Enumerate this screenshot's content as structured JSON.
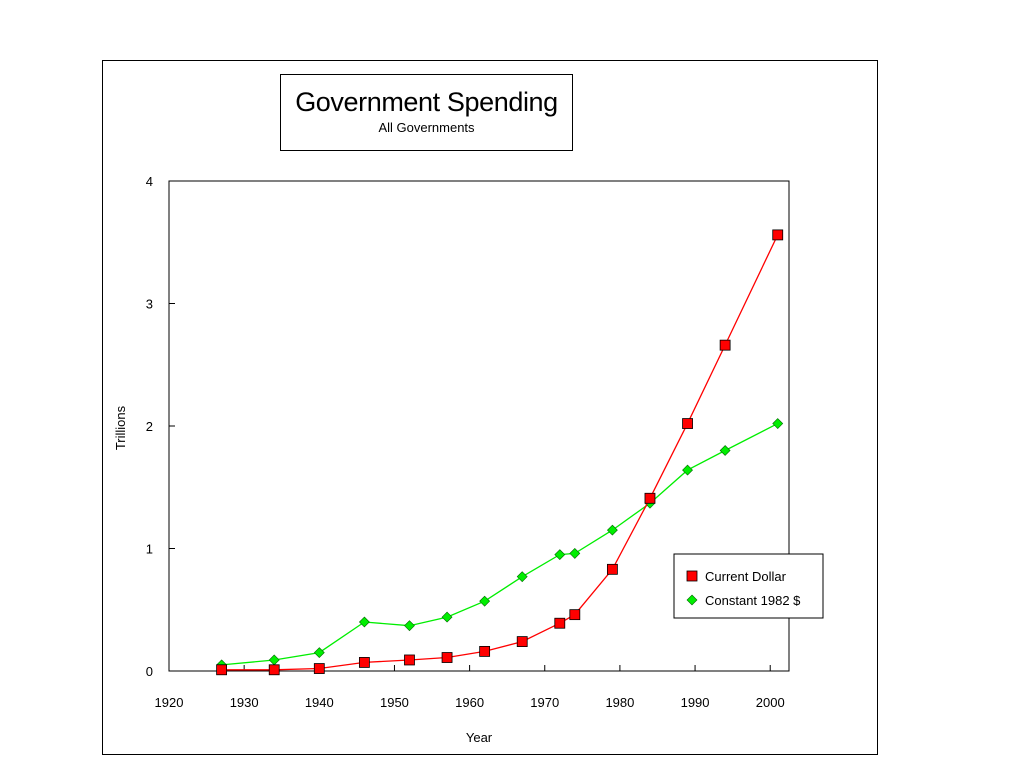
{
  "chart_data": {
    "type": "line",
    "title": "Government Spending",
    "subtitle": "All Governments",
    "xlabel": "Year",
    "ylabel": "Trillions",
    "xlim": [
      1920,
      2000
    ],
    "ylim": [
      0,
      4
    ],
    "xticks": [
      1920,
      1930,
      1940,
      1950,
      1960,
      1970,
      1980,
      1990,
      2000
    ],
    "yticks": [
      0,
      1,
      2,
      3,
      4
    ],
    "legend_position": "bottom-right",
    "series": [
      {
        "name": "Current Dollar",
        "color": "#ff0000",
        "marker": "square",
        "points": [
          [
            1927,
            0.01
          ],
          [
            1934,
            0.01
          ],
          [
            1940,
            0.02
          ],
          [
            1946,
            0.07
          ],
          [
            1952,
            0.09
          ],
          [
            1957,
            0.11
          ],
          [
            1962,
            0.16
          ],
          [
            1967,
            0.24
          ],
          [
            1972,
            0.39
          ],
          [
            1974,
            0.46
          ],
          [
            1979,
            0.83
          ],
          [
            1984,
            1.41
          ],
          [
            1989,
            2.02
          ],
          [
            1994,
            2.66
          ],
          [
            2001,
            3.56
          ]
        ]
      },
      {
        "name": "Constant 1982 $",
        "color": "#00ee00",
        "marker": "diamond",
        "points": [
          [
            1927,
            0.05
          ],
          [
            1934,
            0.09
          ],
          [
            1940,
            0.15
          ],
          [
            1946,
            0.4
          ],
          [
            1952,
            0.37
          ],
          [
            1957,
            0.44
          ],
          [
            1962,
            0.57
          ],
          [
            1967,
            0.77
          ],
          [
            1972,
            0.95
          ],
          [
            1974,
            0.96
          ],
          [
            1979,
            1.15
          ],
          [
            1984,
            1.37
          ],
          [
            1989,
            1.64
          ],
          [
            1994,
            1.8
          ],
          [
            2001,
            2.02
          ]
        ]
      }
    ]
  }
}
